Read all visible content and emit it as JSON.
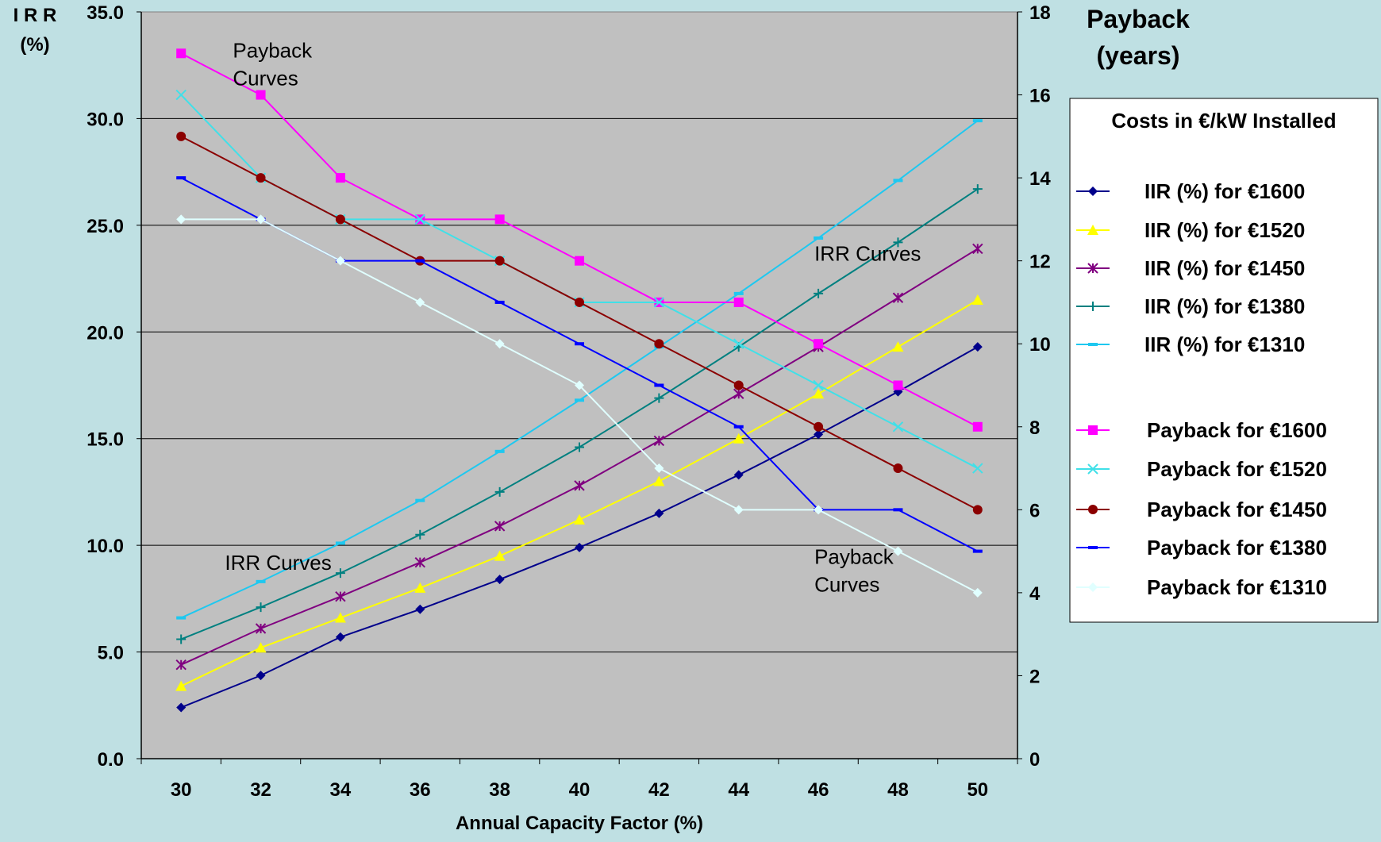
{
  "chart_data": {
    "type": "line",
    "xlabel": "Annual Capacity Factor (%)",
    "y_left_label": [
      "I R R",
      "(%)"
    ],
    "y_right_label": [
      "Payback",
      "(years)"
    ],
    "x": [
      30,
      32,
      34,
      36,
      38,
      40,
      42,
      44,
      46,
      48,
      50
    ],
    "x_ticks": [
      "30",
      "32",
      "34",
      "36",
      "38",
      "40",
      "42",
      "44",
      "46",
      "48",
      "50"
    ],
    "y_left_ticks": [
      "0.0",
      "5.0",
      "10.0",
      "15.0",
      "20.0",
      "25.0",
      "30.0",
      "35.0"
    ],
    "y_right_ticks": [
      "0",
      "2",
      "4",
      "6",
      "8",
      "10",
      "12",
      "14",
      "16",
      "18"
    ],
    "ylim_left": [
      0,
      35
    ],
    "ylim_right": [
      0,
      18
    ],
    "grid": "horizontal",
    "legend_position": "right",
    "legend_title": "Costs in €/kW Installed",
    "annotations": [
      {
        "text": [
          "Payback",
          "Curves"
        ],
        "x": 31.3,
        "y_right": 16.9
      },
      {
        "text": [
          "IRR Curves"
        ],
        "x": 31.1,
        "y_right": 4.55
      },
      {
        "text": [
          "IRR Curves"
        ],
        "x": 45.9,
        "y_right": 12.0
      },
      {
        "text": [
          "Payback",
          "Curves"
        ],
        "x": 45.9,
        "y_right": 4.7
      }
    ],
    "series": [
      {
        "name": "IIR (%) for €1600",
        "axis": "left",
        "color": "#00008b",
        "marker": "diamond",
        "values": [
          2.4,
          3.9,
          5.7,
          7.0,
          8.4,
          9.9,
          11.5,
          13.3,
          15.2,
          17.2,
          19.3
        ]
      },
      {
        "name": "IIR (%) for €1520",
        "axis": "left",
        "color": "#ffff00",
        "marker": "triangle",
        "values": [
          3.4,
          5.2,
          6.6,
          8.0,
          9.5,
          11.2,
          13.0,
          15.0,
          17.1,
          19.3,
          21.5
        ]
      },
      {
        "name": "IIR (%) for €1450",
        "axis": "left",
        "color": "#800080",
        "marker": "star",
        "values": [
          4.4,
          6.1,
          7.6,
          9.2,
          10.9,
          12.8,
          14.9,
          17.1,
          19.3,
          21.6,
          23.9
        ]
      },
      {
        "name": "IIR (%) for €1380",
        "axis": "left",
        "color": "#008080",
        "marker": "plus",
        "values": [
          5.6,
          7.1,
          8.7,
          10.5,
          12.5,
          14.6,
          16.9,
          19.3,
          21.8,
          24.2,
          26.7
        ]
      },
      {
        "name": "IIR (%) for €1310",
        "axis": "left",
        "color": "#1ec8f0",
        "marker": "dash",
        "values": [
          6.6,
          8.3,
          10.1,
          12.1,
          14.4,
          16.8,
          19.3,
          21.8,
          24.4,
          27.1,
          29.9
        ]
      },
      {
        "name": "Payback for €1600",
        "axis": "right",
        "color": "#ff00ff",
        "marker": "square",
        "values": [
          17,
          16,
          14,
          13,
          13,
          12,
          11,
          11,
          10,
          9,
          8
        ]
      },
      {
        "name": "Payback for €1520",
        "axis": "right",
        "color": "#40e0e8",
        "marker": "x",
        "values": [
          16,
          14,
          13,
          13,
          12,
          11,
          11,
          10,
          9,
          8,
          7
        ]
      },
      {
        "name": "Payback for €1450",
        "axis": "right",
        "color": "#8b0000",
        "marker": "circle",
        "values": [
          15,
          14,
          13,
          12,
          12,
          11,
          10,
          9,
          8,
          7,
          6
        ]
      },
      {
        "name": "Payback for €1380",
        "axis": "right",
        "color": "#0000ff",
        "marker": "dash",
        "values": [
          14,
          13,
          12,
          12,
          11,
          10,
          9,
          8,
          6,
          6,
          5
        ]
      },
      {
        "name": "Payback for €1310",
        "axis": "right",
        "color": "#e0ffff",
        "marker": "diamond",
        "values": [
          13,
          13,
          12,
          11,
          10,
          9,
          7,
          6,
          6,
          5,
          4
        ]
      }
    ]
  }
}
